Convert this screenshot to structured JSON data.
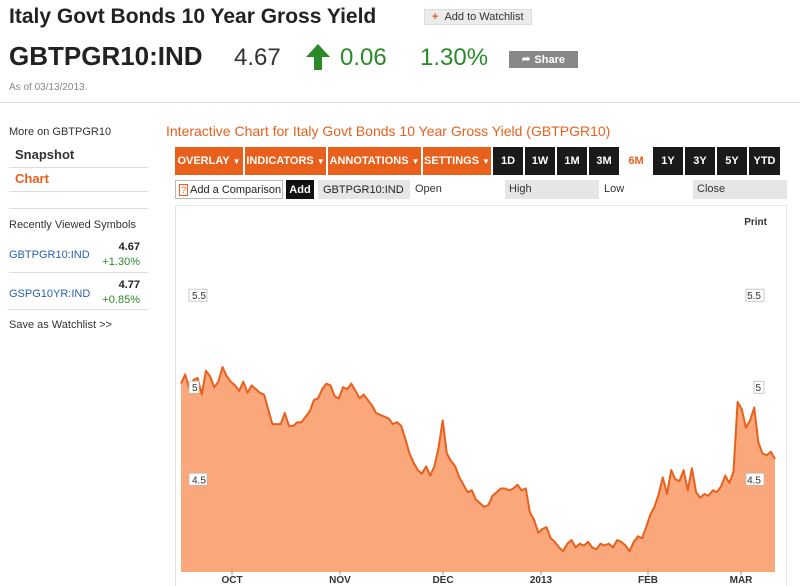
{
  "header": {
    "title": "Italy Govt Bonds 10 Year Gross Yield",
    "watchlist_label": "Add to Watchlist",
    "symbol": "GBTPGR10:IND",
    "price": "4.67",
    "change": "0.06",
    "change_pct": "1.30%",
    "share_label": "Share",
    "as_of": "As of 03/13/2013."
  },
  "sidebar": {
    "more_on": "More on GBTPGR10",
    "links": [
      {
        "label": "Snapshot",
        "active": false
      },
      {
        "label": "Chart",
        "active": true
      }
    ],
    "recent_title": "Recently Viewed Symbols",
    "recent": [
      {
        "symbol": "GBTPGR10:IND",
        "value": "4.67",
        "pct": "+1.30%"
      },
      {
        "symbol": "GSPG10YR:IND",
        "value": "4.77",
        "pct": "+0.85%"
      }
    ],
    "save_watchlist": "Save as Watchlist >>"
  },
  "chart_panel": {
    "title": "Interactive Chart for Italy Govt Bonds 10 Year Gross Yield (GBTPGR10)",
    "menus": [
      "OVERLAY",
      "INDICATORS",
      "ANNOTATIONS",
      "SETTINGS"
    ],
    "ranges": [
      "1D",
      "1W",
      "1M",
      "3M",
      "6M",
      "1Y",
      "3Y",
      "5Y",
      "YTD"
    ],
    "active_range": "6M",
    "compare_label": "Add a Comparison",
    "add_label": "Add",
    "compare_symbol": "GBTPGR10:IND",
    "open_label": "Open",
    "high_label": "High",
    "low_label": "Low",
    "close_label": "Close",
    "print_label": "Print"
  },
  "chart_data": {
    "type": "area",
    "x_labels": [
      "OCT",
      "NOV",
      "DEC",
      "2013",
      "FEB",
      "MAR"
    ],
    "y_ticks": [
      "5.5",
      "5",
      "4.5"
    ],
    "ylim": [
      3.98,
      5.99
    ],
    "colors": {
      "fill": "#f9a77b",
      "line": "#e8601c"
    },
    "values": [
      5.02,
      5.07,
      4.99,
      5.04,
      5.05,
      4.96,
      5.09,
      5.06,
      5.0,
      5.03,
      5.11,
      5.06,
      5.03,
      5.01,
      4.98,
      5.03,
      4.97,
      5.01,
      4.99,
      4.97,
      4.96,
      4.88,
      4.8,
      4.8,
      4.8,
      4.86,
      4.79,
      4.79,
      4.81,
      4.81,
      4.84,
      4.87,
      4.93,
      4.94,
      4.99,
      5.02,
      5.01,
      4.95,
      4.94,
      5.0,
      4.99,
      5.02,
      4.98,
      4.94,
      4.96,
      4.93,
      4.9,
      4.86,
      4.85,
      4.84,
      4.83,
      4.8,
      4.81,
      4.79,
      4.72,
      4.64,
      4.59,
      4.55,
      4.53,
      4.57,
      4.52,
      4.57,
      4.67,
      4.82,
      4.64,
      4.6,
      4.57,
      4.51,
      4.47,
      4.43,
      4.44,
      4.39,
      4.37,
      4.35,
      4.36,
      4.41,
      4.43,
      4.45,
      4.45,
      4.44,
      4.45,
      4.47,
      4.44,
      4.45,
      4.32,
      4.28,
      4.21,
      4.23,
      4.24,
      4.18,
      4.16,
      4.13,
      4.11,
      4.15,
      4.17,
      4.13,
      4.15,
      4.14,
      4.16,
      4.13,
      4.12,
      4.15,
      4.14,
      4.15,
      4.13,
      4.17,
      4.16,
      4.14,
      4.11,
      4.16,
      4.19,
      4.18,
      4.24,
      4.31,
      4.35,
      4.42,
      4.51,
      4.42,
      4.55,
      4.5,
      4.49,
      4.55,
      4.44,
      4.56,
      4.43,
      4.4,
      4.42,
      4.41,
      4.44,
      4.43,
      4.46,
      4.52,
      4.48,
      4.54,
      4.92,
      4.88,
      4.78,
      4.82,
      4.89,
      4.7,
      4.64,
      4.63,
      4.65,
      4.61
    ]
  }
}
